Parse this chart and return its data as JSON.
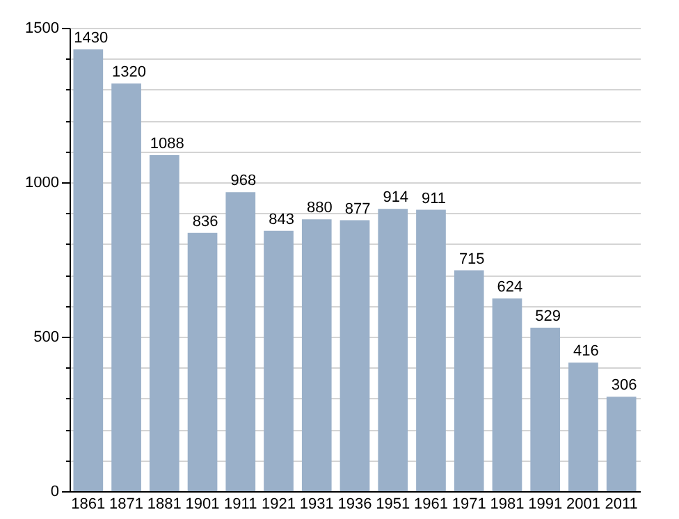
{
  "chart_data": {
    "type": "bar",
    "categories": [
      "1861",
      "1871",
      "1881",
      "1901",
      "1911",
      "1921",
      "1931",
      "1936",
      "1951",
      "1961",
      "1971",
      "1981",
      "1991",
      "2001",
      "2011"
    ],
    "values": [
      1430,
      1320,
      1088,
      836,
      968,
      843,
      880,
      877,
      914,
      911,
      715,
      624,
      529,
      416,
      306
    ],
    "color": "#9ab0c9",
    "ylim": [
      0,
      1500
    ],
    "yticks": [
      0,
      {
        "value": 100,
        "label": null
      },
      {
        "value": 200,
        "label": null
      },
      {
        "value": 300,
        "label": null
      },
      {
        "value": 400,
        "label": null
      },
      500,
      {
        "value": 600,
        "label": null
      },
      {
        "value": 700,
        "label": null
      },
      {
        "value": 800,
        "label": null
      },
      {
        "value": 900,
        "label": null
      },
      1000,
      {
        "value": 1100,
        "label": null
      },
      {
        "value": 1200,
        "label": null
      },
      {
        "value": 1300,
        "label": null
      },
      {
        "value": 1400,
        "label": null
      },
      1500
    ],
    "grid": true,
    "data_labels": true
  }
}
